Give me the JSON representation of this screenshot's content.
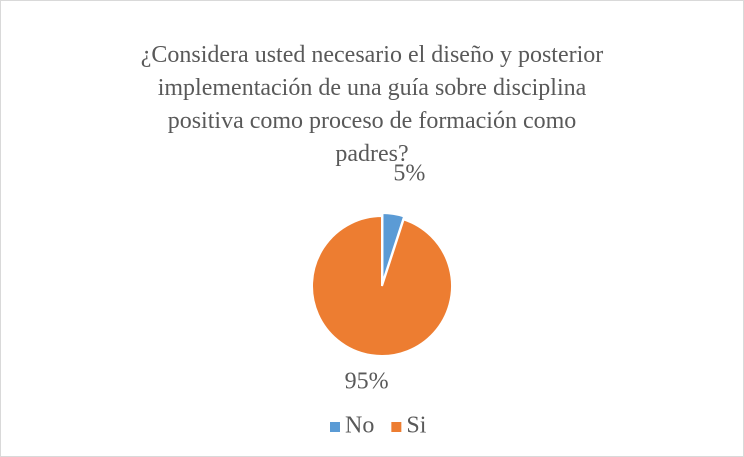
{
  "chart_data": {
    "type": "pie",
    "title": "¿Considera usted necesario el diseño y posterior implementación de una guía sobre disciplina positiva como proceso de formación como padres?",
    "categories": [
      "No",
      "Si"
    ],
    "values": [
      5,
      95
    ],
    "value_labels": [
      "5%",
      "95%"
    ],
    "colors": [
      "#5b9bd5",
      "#ed7d31"
    ],
    "legend": "bottom"
  }
}
